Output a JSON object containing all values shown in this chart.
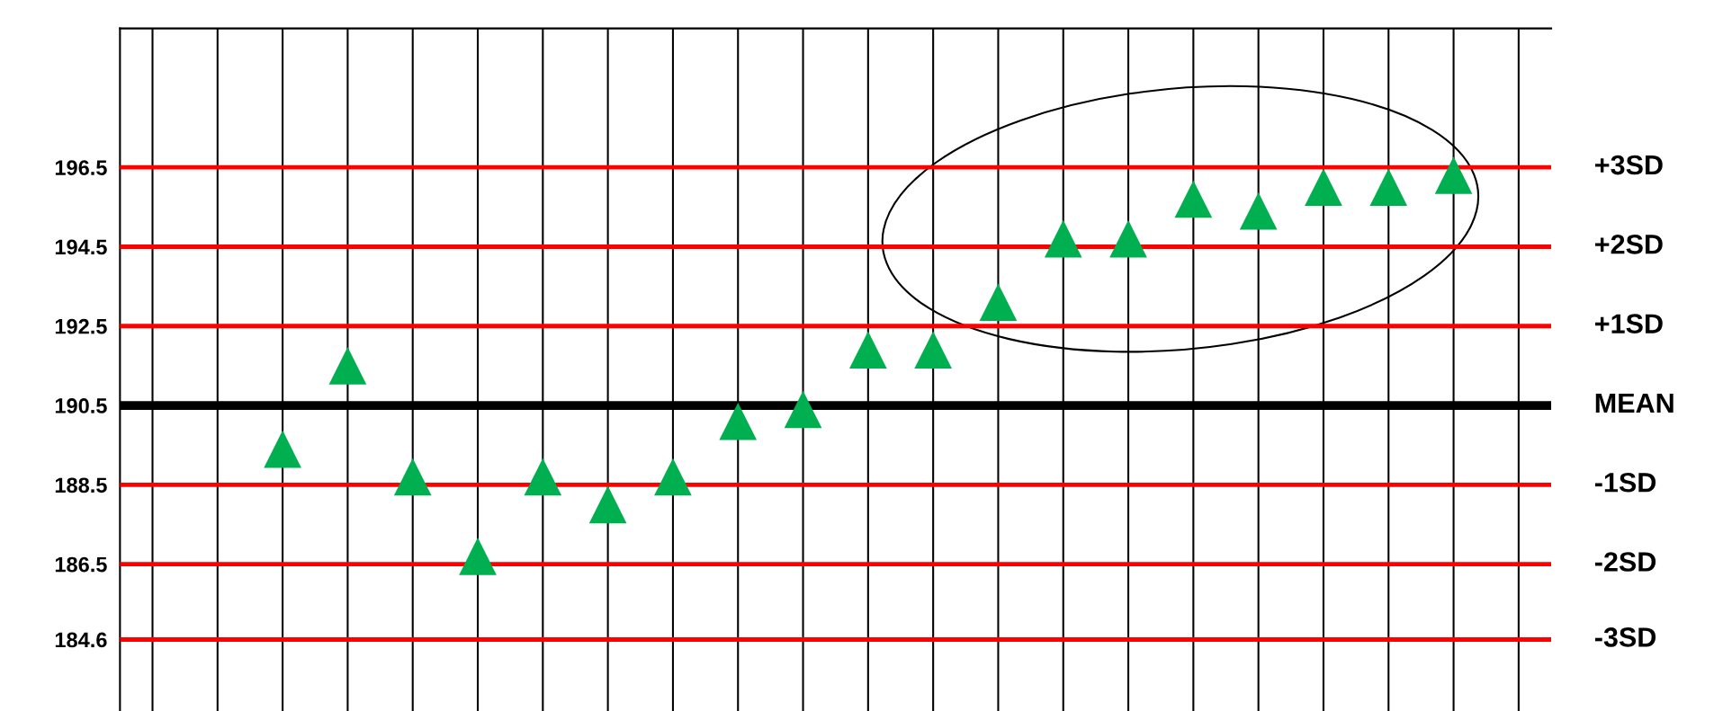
{
  "chart_data": {
    "type": "scatter",
    "categories": [
      null,
      null,
      null,
      null,
      null,
      null,
      null,
      null,
      null,
      null,
      null,
      null,
      null,
      null,
      null,
      null,
      null,
      null,
      null,
      null,
      null,
      null
    ],
    "series": [
      {
        "color": "#00b050",
        "values": [
          null,
          null,
          189.4,
          191.5,
          188.7,
          186.7,
          188.7,
          188.0,
          188.7,
          190.1,
          190.4,
          191.9,
          191.9,
          193.1,
          194.7,
          194.7,
          195.7,
          195.4,
          196.0,
          196.0,
          196.3,
          null
        ]
      }
    ],
    "ylim": [
      182.8,
      200
    ],
    "yticks": [
      184.6,
      186.5,
      188.5,
      190.5,
      192.5,
      194.5,
      196.5
    ],
    "ref_lines": [
      {
        "axis": "y",
        "value": 196.5,
        "label": "+3SD",
        "color": "#ff0000"
      },
      {
        "axis": "y",
        "value": 194.5,
        "label": "+2SD",
        "color": "#ff0000"
      },
      {
        "axis": "y",
        "value": 192.5,
        "label": "+1SD",
        "color": "#ff0000"
      },
      {
        "axis": "y",
        "value": 190.5,
        "label": "MEAN",
        "color": "#000000"
      },
      {
        "axis": "y",
        "value": 188.5,
        "label": "-1SD",
        "color": "#ff0000"
      },
      {
        "axis": "y",
        "value": 186.5,
        "label": "-2SD",
        "color": "#ff0000"
      },
      {
        "axis": "y",
        "value": 184.6,
        "label": "-3SD",
        "color": "#ff0000"
      }
    ],
    "grid": "x",
    "marker": "triangle",
    "legend": false,
    "tick_labels": "y"
  }
}
